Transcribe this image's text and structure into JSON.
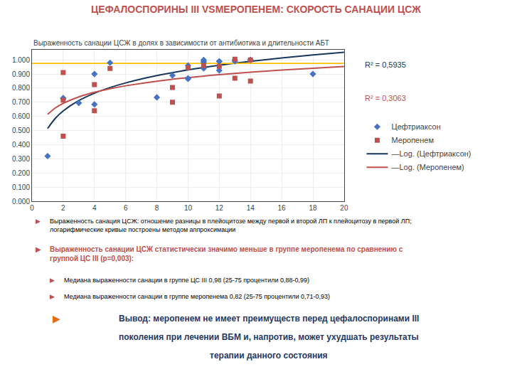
{
  "chart_data": {
    "type": "scatter",
    "title": "ЦЕФАЛОСПОРИНЫ III VSМЕРОПЕНЕМ: СКОРОСТЬ САНАЦИИ ЦСЖ",
    "subtitle": "Выраженность санации ЦСЖ в долях в зависимости от антибиотика и длительности АБТ",
    "xlim": [
      0,
      20
    ],
    "ylim": [
      0.0,
      1.07
    ],
    "xticks": [
      0,
      2,
      4,
      6,
      8,
      10,
      12,
      14,
      16,
      18,
      20
    ],
    "yticks": [
      {
        "value": 0.0,
        "label": "0.000"
      },
      {
        "value": 0.1,
        "label": "0.100"
      },
      {
        "value": 0.2,
        "label": "0.200"
      },
      {
        "value": 0.3,
        "label": "0.300"
      },
      {
        "value": 0.4,
        "label": "0.400"
      },
      {
        "value": 0.5,
        "label": "0.500"
      },
      {
        "value": 0.6,
        "label": "0.600"
      },
      {
        "value": 0.7,
        "label": "0.700"
      },
      {
        "value": 0.8,
        "label": "0.800"
      },
      {
        "value": 0.9,
        "label": "0.900"
      },
      {
        "value": 1.0,
        "label": "1.000"
      }
    ],
    "grid": true,
    "legend": "right",
    "series": [
      {
        "name": "Цефтриаксон",
        "type": "scatter",
        "marker": "diamond",
        "color": "#4472C4",
        "x": [
          1,
          2,
          2,
          3,
          4,
          4,
          5,
          8,
          9,
          10,
          10,
          10,
          11,
          11,
          11,
          11,
          12,
          12,
          12,
          13,
          13,
          14,
          14,
          18
        ],
        "values": [
          0.32,
          0.725,
          0.73,
          0.695,
          0.9,
          0.685,
          0.98,
          0.735,
          0.89,
          0.96,
          0.87,
          0.865,
          1.0,
          0.99,
          0.98,
          0.94,
          0.99,
          0.99,
          0.925,
          1.0,
          0.99,
          1.0,
          1.0,
          0.9
        ]
      },
      {
        "name": "Меропенем",
        "type": "scatter",
        "marker": "square",
        "color": "#C0504D",
        "x": [
          2,
          2,
          2,
          4,
          4,
          5,
          9,
          9,
          10,
          11,
          12,
          12,
          13,
          13,
          14,
          14
        ],
        "values": [
          0.91,
          0.715,
          0.46,
          0.825,
          0.64,
          0.94,
          0.7,
          0.805,
          0.945,
          0.96,
          0.745,
          0.955,
          1.005,
          0.87,
          1.0,
          0.85
        ]
      },
      {
        "name": "—Log. (Цефтриаксон)",
        "type": "line",
        "color": "#17375E",
        "x": [
          1,
          1.5,
          2,
          3,
          4,
          5,
          6,
          8,
          10,
          12,
          14,
          16,
          18,
          20
        ],
        "values": [
          0.5145,
          0.5875,
          0.6393,
          0.7123,
          0.7641,
          0.8042,
          0.837,
          0.8888,
          0.929,
          0.9618,
          0.9896,
          1.0136,
          1.0348,
          1.0538
        ]
      },
      {
        "name": "—Log. (Меропенем)",
        "type": "line",
        "color": "#C0504D",
        "x": [
          1,
          1.5,
          2,
          3,
          4,
          5,
          6,
          8,
          10,
          12,
          14,
          16,
          18,
          20
        ],
        "values": [
          0.6146,
          0.6603,
          0.6928,
          0.7386,
          0.7711,
          0.7962,
          0.8168,
          0.8493,
          0.8745,
          0.8951,
          0.9125,
          0.9276,
          0.9408,
          0.9527
        ]
      },
      {
        "type": "line",
        "color": "#FFC000",
        "x": [
          0,
          20
        ],
        "values": [
          0.975,
          0.975
        ]
      }
    ],
    "annotations": [
      {
        "text": "R² = 0,5935",
        "color": "#17375E"
      },
      {
        "text": "R² = 0,3063",
        "color": "#C0504D"
      },
      {
        "text": "▶",
        "color": "#C0504D"
      },
      {
        "text": "Выраженность санация ЦСЖ: отношение разницы в плейоцитозе между первой и второй ЛП к плейоцитозу в первой ЛП; логарифмические кривые построены методом аппроксимации",
        "color": "#000000"
      },
      {
        "text": "▶",
        "color": "#C0504D"
      },
      {
        "text": "Выраженность санации ЦСЖ статистически значимо меньше в группе меропенема по сравнению с группой ЦС III (р=0,003):",
        "color": "#C0504D"
      },
      {
        "text": "▶",
        "color": "#C0504D"
      },
      {
        "text": "Медиана выраженности санации в группе ЦС III 0,98 (25-75 процентили 0,88-0,99)",
        "color": "#000000"
      },
      {
        "text": "▶",
        "color": "#C0504D"
      },
      {
        "text": "Медиана выраженности санации в группе меропенема 0,82 (25-75 процентили 0,71-0,93)",
        "color": "#000000"
      },
      {
        "text": "▶",
        "color": "#E36C09"
      },
      {
        "text": "Вывод: меропенем не имеет преимуществ перед цефалоспоринами III",
        "color": "#1F3864"
      },
      {
        "text": "поколения при лечении ВБМ и, напротив, может ухудшать результаты",
        "color": "#1F3864"
      },
      {
        "text": "терапии данного состояния",
        "color": "#1F3864"
      }
    ]
  }
}
